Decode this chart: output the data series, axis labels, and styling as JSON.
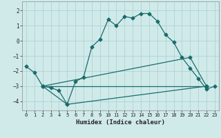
{
  "xlabel": "Humidex (Indice chaleur)",
  "bg_color": "#d0eaea",
  "grid_color": "#aacccc",
  "line_color": "#1a6b6b",
  "xlim": [
    -0.5,
    23.5
  ],
  "ylim": [
    -4.6,
    2.6
  ],
  "xticks": [
    0,
    1,
    2,
    3,
    4,
    5,
    6,
    7,
    8,
    9,
    10,
    11,
    12,
    13,
    14,
    15,
    16,
    17,
    18,
    19,
    20,
    21,
    22,
    23
  ],
  "yticks": [
    -4,
    -3,
    -2,
    -1,
    0,
    1,
    2
  ],
  "line1_x": [
    0,
    1,
    2,
    3,
    4,
    5,
    6,
    7,
    8,
    9,
    10,
    11,
    12,
    13,
    14,
    15,
    16,
    17,
    18,
    19,
    20,
    21,
    22,
    23
  ],
  "line1_y": [
    -1.7,
    -2.1,
    -3.0,
    -3.1,
    -3.3,
    -4.2,
    -2.7,
    -2.4,
    -0.4,
    0.1,
    1.4,
    1.0,
    1.6,
    1.5,
    1.8,
    1.8,
    1.3,
    0.4,
    -0.1,
    -1.1,
    -1.8,
    -2.5,
    -3.2,
    -3.0
  ],
  "line2_x": [
    2,
    22
  ],
  "line2_y": [
    -3.0,
    -3.0
  ],
  "line3_x": [
    2,
    5,
    22
  ],
  "line3_y": [
    -3.0,
    -4.2,
    -3.0
  ],
  "line4_x": [
    2,
    20,
    22
  ],
  "line4_y": [
    -3.0,
    -1.1,
    -3.0
  ]
}
